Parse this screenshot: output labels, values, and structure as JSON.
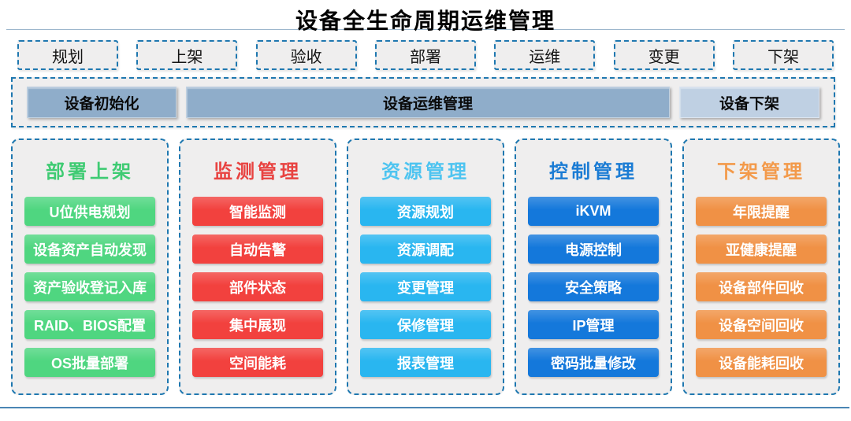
{
  "page": {
    "title": "设备全生命周期运维管理"
  },
  "phases": [
    {
      "label": "规划"
    },
    {
      "label": "上架"
    },
    {
      "label": "验收"
    },
    {
      "label": "部署"
    },
    {
      "label": "运维"
    },
    {
      "label": "变更"
    },
    {
      "label": "下架"
    }
  ],
  "lifecycle_bar": {
    "segments": [
      {
        "label": "设备初始化",
        "variant": "dark"
      },
      {
        "label": "设备运维管理",
        "variant": "dark"
      },
      {
        "label": "设备下架",
        "variant": "light"
      }
    ]
  },
  "columns": [
    {
      "title": "部署上架",
      "title_color": "#3fcb73",
      "item_color": "#4fd680",
      "items": [
        "U位供电规划",
        "设备资产自动发现",
        "资产验收登记入库",
        "RAID、BIOS配置",
        "OS批量部署"
      ]
    },
    {
      "title": "监测管理",
      "title_color": "#e84341",
      "item_color": "#f2413e",
      "items": [
        "智能监测",
        "自动告警",
        "部件状态",
        "集中展现",
        "空间能耗"
      ]
    },
    {
      "title": "资源管理",
      "title_color": "#4ec4f0",
      "item_color": "#29b6f0",
      "items": [
        "资源规划",
        "资源调配",
        "变更管理",
        "保修管理",
        "报表管理"
      ]
    },
    {
      "title": "控制管理",
      "title_color": "#1b7cd4",
      "item_color": "#1478db",
      "items": [
        "iKVM",
        "电源控制",
        "安全策略",
        "IP管理",
        "密码批量修改"
      ]
    },
    {
      "title": "下架管理",
      "title_color": "#f39a4b",
      "item_color": "#f09145",
      "items": [
        "年限提醒",
        "亚健康提醒",
        "设备部件回收",
        "设备空间回收",
        "设备能耗回收"
      ]
    }
  ],
  "colors": {
    "dashed_border": "#1f78b0",
    "panel_background": "#efeeee",
    "bar_dark": "#8fadca",
    "bar_light": "#bfd0e3",
    "rule_top": "#9db7cd",
    "rule_bottom": "#4a86b4"
  }
}
